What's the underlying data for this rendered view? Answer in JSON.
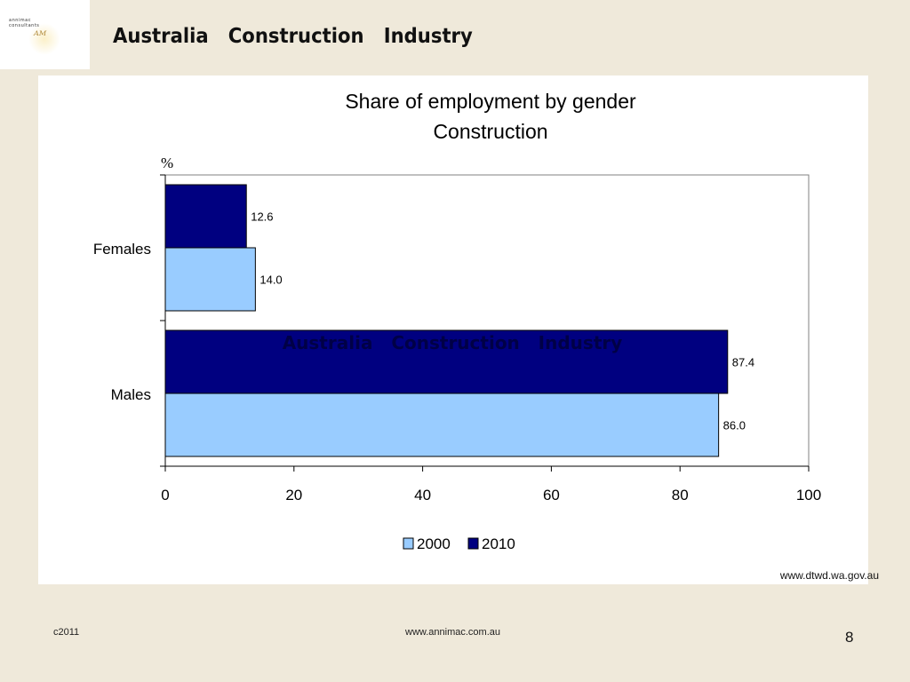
{
  "header": {
    "logo_text_line1": "annimac",
    "logo_text_line2": "consultants",
    "logo_mark": "ᴬᴹ",
    "title": "Australia   Construction   Industry"
  },
  "chart_data": {
    "type": "bar",
    "orientation": "horizontal",
    "title": "Share of employment by gender",
    "subtitle": "Construction",
    "unit_label": "%",
    "categories": [
      "Females",
      "Males"
    ],
    "series": [
      {
        "name": "2000",
        "color": "#99ccff",
        "values": [
          14.0,
          86.0
        ],
        "labels": [
          "14.0",
          "86.0"
        ]
      },
      {
        "name": "2010",
        "color": "#000080",
        "values": [
          12.6,
          87.4
        ],
        "labels": [
          "12.6",
          "87.4"
        ]
      }
    ],
    "xlim": [
      0,
      100
    ],
    "xticks": [
      0,
      20,
      40,
      60,
      80,
      100
    ],
    "legend_position": "bottom",
    "overlay_text": "Australia   Construction   Industry"
  },
  "source": "www.dtwd.wa.gov.au",
  "footer": {
    "left": "c2011",
    "center": "www.annimac.com.au",
    "page_number": "8"
  }
}
